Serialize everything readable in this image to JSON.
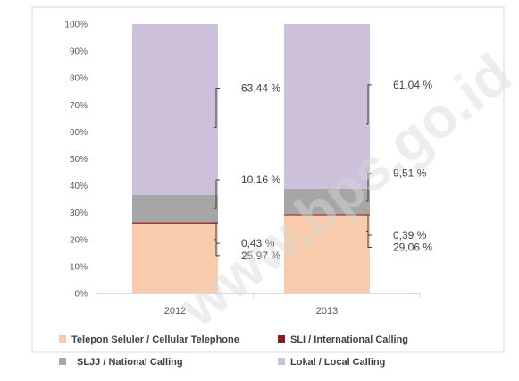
{
  "chart_data": {
    "type": "bar",
    "stacked": true,
    "percent_stacked": true,
    "categories": [
      "2012",
      "2013"
    ],
    "series": [
      {
        "name": "Telepon Seluler / Cellular Telephone",
        "values": [
          25.97,
          29.06
        ],
        "labels": [
          "25,97 %",
          "29,06 %"
        ],
        "color": "#f8cbad"
      },
      {
        "name": "SLI / International Calling",
        "values": [
          0.43,
          0.39
        ],
        "labels": [
          "0,43 %",
          "0,39 %"
        ],
        "color": "#8b1a1a"
      },
      {
        "name": "SLJJ / National Calling",
        "values": [
          10.16,
          9.51
        ],
        "labels": [
          "10,16 %",
          "9,51 %"
        ],
        "color": "#a6a6a6"
      },
      {
        "name": "Lokal / Local Calling",
        "values": [
          63.44,
          61.04
        ],
        "labels": [
          "63,44 %",
          "61,04 %"
        ],
        "color": "#ccc0da"
      }
    ],
    "y_ticks": [
      "0%",
      "10%",
      "20%",
      "30%",
      "40%",
      "50%",
      "60%",
      "70%",
      "80%",
      "90%",
      "100%"
    ],
    "ylim": [
      0,
      100
    ],
    "grid": false,
    "legend_position": "bottom",
    "watermark": "www.bps.go.id"
  }
}
